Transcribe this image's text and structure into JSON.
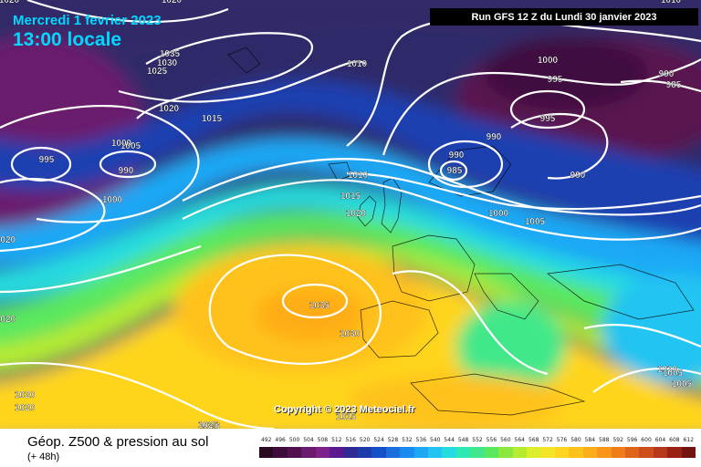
{
  "header": {
    "date": "Mercredi 1 fevrier 2023",
    "time": "13:00 locale",
    "run": "Run GFS 12 Z du Lundi 30 janvier 2023"
  },
  "footer": {
    "title": "Géop. Z500 & pression au sol",
    "subtitle": "(+ 48h)"
  },
  "copyright": "Copyright © 2023 Meteociel.fr",
  "scale": {
    "labels": [
      "492",
      "496",
      "500",
      "504",
      "508",
      "512",
      "516",
      "520",
      "524",
      "528",
      "532",
      "536",
      "540",
      "544",
      "548",
      "552",
      "556",
      "560",
      "564",
      "568",
      "572",
      "576",
      "580",
      "584",
      "588",
      "592",
      "596",
      "600",
      "604",
      "608",
      "612"
    ],
    "colors": [
      "#2a0a22",
      "#3d0b3c",
      "#52104f",
      "#6b1a6d",
      "#80208a",
      "#5a1a8e",
      "#2f2a95",
      "#1c3aa8",
      "#1650c8",
      "#1a6ee0",
      "#1b8cef",
      "#1fa8f5",
      "#23c4f2",
      "#27dce0",
      "#2ee8b6",
      "#3fe88a",
      "#5ae85e",
      "#8ae83e",
      "#b6ec2f",
      "#dcef2a",
      "#f4e627",
      "#ffd51f",
      "#ffc21b",
      "#ffad18",
      "#f99518",
      "#ee7d1a",
      "#e0641c",
      "#cf4c1c",
      "#b83619",
      "#9a2215",
      "#701510"
    ]
  },
  "isobar_labels": [
    "1035",
    "1030",
    "1025",
    "1020",
    "1015",
    "1010",
    "1005",
    "1000",
    "995",
    "990",
    "1020",
    "1015",
    "1010",
    "1005",
    "1000",
    "995",
    "990",
    "985",
    "990",
    "1000",
    "1005",
    "1010",
    "1015",
    "1020",
    "1035",
    "1030",
    "1025",
    "1020",
    "1020",
    "1020",
    "1020",
    "1020",
    "1000",
    "990",
    "995",
    "985",
    "990",
    "1010",
    "1005",
    "1025"
  ]
}
